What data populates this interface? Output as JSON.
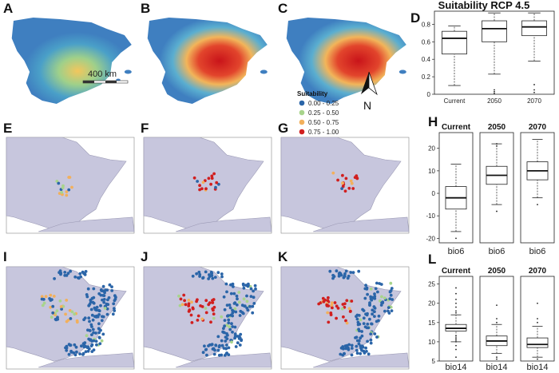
{
  "panel_labels": [
    "A",
    "B",
    "C",
    "D",
    "E",
    "F",
    "G",
    "H",
    "I",
    "J",
    "K",
    "L"
  ],
  "scale_bar": {
    "label": "400 km"
  },
  "north_arrow": {
    "label": "N"
  },
  "legend": {
    "title": "Suitability",
    "items": [
      {
        "label": "0.00 - 0.25",
        "color": "#2b65a8"
      },
      {
        "label": "0.25 - 0.50",
        "color": "#a8d48c"
      },
      {
        "label": "0.50 - 0.75",
        "color": "#f2b05c"
      },
      {
        "label": "0.75 - 1.00",
        "color": "#d11f1f"
      }
    ]
  },
  "colors": {
    "sea": "#ffffff",
    "land_heat": "#3f7fc0",
    "land_gray": "#c7c6dd",
    "coast": "#9a99b4"
  },
  "chart_data": [
    {
      "id": "D",
      "type": "box",
      "title": "Suitability RCP 4.5",
      "categories": [
        "Current",
        "2050",
        "2070"
      ],
      "ylim": [
        0,
        0.95
      ],
      "yticks": [
        0,
        0.2,
        0.4,
        0.6,
        0.8
      ],
      "ytick_labels": [
        "0",
        "0.2",
        "0.4",
        "0.6",
        "0.8"
      ],
      "boxes": [
        {
          "whisker_low": 0.1,
          "q1": 0.46,
          "median": 0.64,
          "q3": 0.72,
          "whisker_high": 0.78,
          "outliers": []
        },
        {
          "whisker_low": 0.23,
          "q1": 0.6,
          "median": 0.75,
          "q3": 0.84,
          "whisker_high": 0.93,
          "outliers": [
            0.01,
            0.03,
            0.05
          ]
        },
        {
          "whisker_low": 0.38,
          "q1": 0.67,
          "median": 0.77,
          "q3": 0.84,
          "whisker_high": 0.93,
          "outliers": [
            0.02,
            0.05,
            0.11
          ]
        }
      ]
    },
    {
      "id": "H",
      "type": "box",
      "panels": [
        {
          "title": "Current",
          "xlabel": "bio6",
          "whisker_low": -17,
          "q1": -7,
          "median": -2,
          "q3": 3,
          "whisker_high": 13,
          "outliers": [
            -20
          ]
        },
        {
          "title": "2050",
          "xlabel": "bio6",
          "whisker_low": -5,
          "q1": 4,
          "median": 8,
          "q3": 12,
          "whisker_high": 22,
          "outliers": [
            -8,
            21,
            22
          ]
        },
        {
          "title": "2070",
          "xlabel": "bio6",
          "whisker_low": -2,
          "q1": 6,
          "median": 10,
          "q3": 14,
          "whisker_high": 24,
          "outliers": [
            -5
          ]
        }
      ],
      "ylim": [
        -22,
        27
      ],
      "yticks": [
        -20,
        -10,
        0,
        10,
        20
      ],
      "ytick_labels": [
        "-20",
        "-10",
        "0",
        "10",
        "20"
      ]
    },
    {
      "id": "L",
      "type": "box",
      "panels": [
        {
          "title": "Current",
          "xlabel": "bio14",
          "whisker_low": 10,
          "q1": 12.8,
          "median": 13.5,
          "q3": 14.5,
          "whisker_high": 17,
          "outliers": [
            6,
            8,
            9,
            10,
            10.5,
            11,
            11.5,
            17.5,
            18,
            19,
            20,
            21,
            22.5,
            24
          ]
        },
        {
          "title": "2050",
          "xlabel": "bio14",
          "whisker_low": 7,
          "q1": 9,
          "median": 10.2,
          "q3": 11.5,
          "whisker_high": 14.5,
          "outliers": [
            5.5,
            6,
            15,
            16,
            19.5
          ]
        },
        {
          "title": "2070",
          "xlabel": "bio14",
          "whisker_low": 6,
          "q1": 8.5,
          "median": 9.3,
          "q3": 11,
          "whisker_high": 14,
          "outliers": [
            5.5,
            15,
            16,
            20
          ]
        }
      ],
      "ylim": [
        5,
        27
      ],
      "yticks": [
        5,
        10,
        15,
        20,
        25
      ],
      "ytick_labels": [
        "5",
        "10",
        "15",
        "20",
        "25"
      ]
    }
  ]
}
